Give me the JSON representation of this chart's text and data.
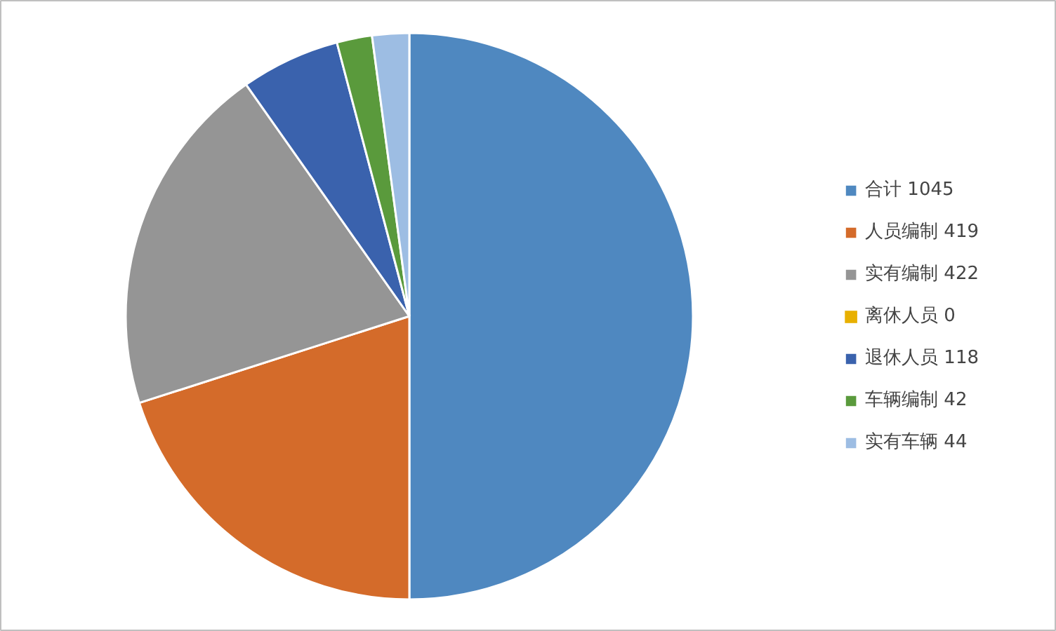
{
  "chart_data": {
    "type": "pie",
    "categories": [
      "合计 1045",
      "人员编制 419",
      "实有编制 422",
      "离休人员 0",
      "退休人员 118",
      "车辆编制 42",
      "实有车辆 44"
    ],
    "values": [
      1045,
      419,
      422,
      0,
      118,
      42,
      44
    ],
    "colors": [
      "#4f88c0",
      "#d46b2a",
      "#959595",
      "#e8b000",
      "#3a62ad",
      "#5a9a3c",
      "#9dbde3"
    ],
    "legend": "right"
  }
}
